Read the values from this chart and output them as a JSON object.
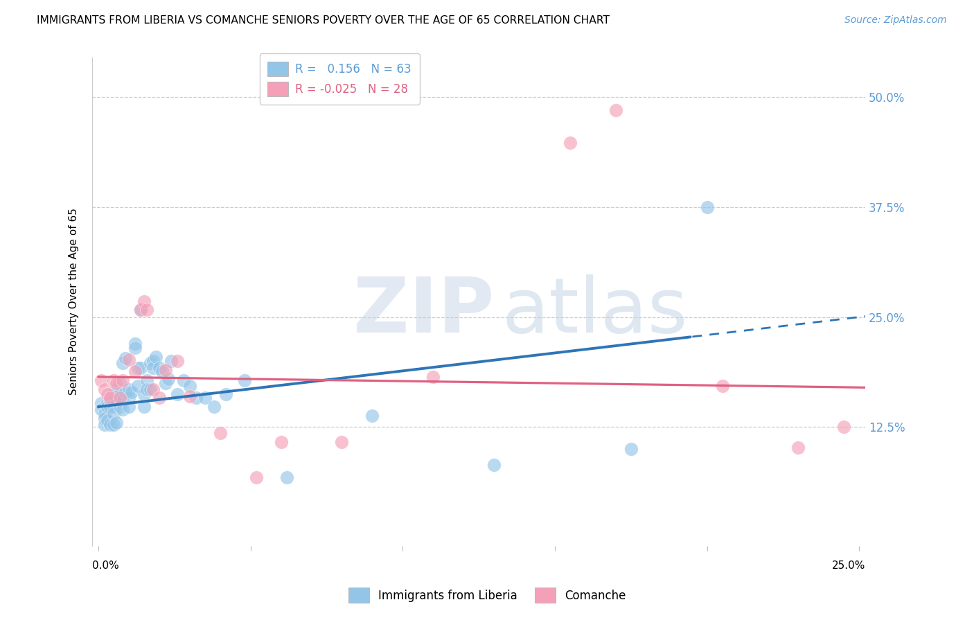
{
  "title": "IMMIGRANTS FROM LIBERIA VS COMANCHE SENIORS POVERTY OVER THE AGE OF 65 CORRELATION CHART",
  "source": "Source: ZipAtlas.com",
  "ylabel": "Seniors Poverty Over the Age of 65",
  "ytick_labels": [
    "12.5%",
    "25.0%",
    "37.5%",
    "50.0%"
  ],
  "ytick_values": [
    0.125,
    0.25,
    0.375,
    0.5
  ],
  "xlim": [
    -0.002,
    0.252
  ],
  "ylim": [
    -0.01,
    0.545
  ],
  "legend_label1": "Immigrants from Liberia",
  "legend_label2": "Comanche",
  "R1": "0.156",
  "N1": "63",
  "R2": "-0.025",
  "N2": "28",
  "blue_color": "#92C5E8",
  "pink_color": "#F4A0B8",
  "line_blue": "#2E75B6",
  "line_pink": "#E06080",
  "line_solid_end": 0.195,
  "blue_line_x0": 0.0,
  "blue_line_y0": 0.148,
  "blue_line_x1": 0.25,
  "blue_line_y1": 0.25,
  "pink_line_x0": 0.0,
  "pink_line_y0": 0.182,
  "pink_line_x1": 0.25,
  "pink_line_y1": 0.17,
  "blue_scatter_x": [
    0.001,
    0.001,
    0.002,
    0.002,
    0.002,
    0.003,
    0.003,
    0.003,
    0.004,
    0.004,
    0.004,
    0.005,
    0.005,
    0.005,
    0.005,
    0.006,
    0.006,
    0.006,
    0.007,
    0.007,
    0.007,
    0.008,
    0.008,
    0.008,
    0.009,
    0.009,
    0.01,
    0.01,
    0.01,
    0.011,
    0.012,
    0.012,
    0.013,
    0.013,
    0.014,
    0.014,
    0.015,
    0.015,
    0.016,
    0.016,
    0.017,
    0.017,
    0.018,
    0.018,
    0.019,
    0.02,
    0.021,
    0.022,
    0.023,
    0.024,
    0.026,
    0.028,
    0.03,
    0.032,
    0.035,
    0.038,
    0.042,
    0.048,
    0.062,
    0.09,
    0.13,
    0.175,
    0.2
  ],
  "blue_scatter_y": [
    0.152,
    0.145,
    0.14,
    0.135,
    0.128,
    0.153,
    0.148,
    0.132,
    0.155,
    0.148,
    0.128,
    0.162,
    0.148,
    0.14,
    0.128,
    0.168,
    0.155,
    0.13,
    0.175,
    0.162,
    0.148,
    0.198,
    0.155,
    0.145,
    0.203,
    0.165,
    0.168,
    0.158,
    0.148,
    0.165,
    0.22,
    0.215,
    0.192,
    0.172,
    0.258,
    0.192,
    0.162,
    0.148,
    0.178,
    0.168,
    0.198,
    0.168,
    0.2,
    0.192,
    0.205,
    0.192,
    0.188,
    0.175,
    0.18,
    0.2,
    0.162,
    0.178,
    0.172,
    0.158,
    0.158,
    0.148,
    0.162,
    0.178,
    0.068,
    0.138,
    0.082,
    0.1,
    0.375
  ],
  "pink_scatter_x": [
    0.001,
    0.002,
    0.003,
    0.004,
    0.005,
    0.006,
    0.007,
    0.008,
    0.01,
    0.012,
    0.014,
    0.015,
    0.016,
    0.018,
    0.02,
    0.022,
    0.026,
    0.03,
    0.04,
    0.052,
    0.06,
    0.08,
    0.11,
    0.155,
    0.17,
    0.205,
    0.23,
    0.245
  ],
  "pink_scatter_y": [
    0.178,
    0.168,
    0.162,
    0.158,
    0.178,
    0.175,
    0.158,
    0.178,
    0.202,
    0.188,
    0.258,
    0.268,
    0.258,
    0.168,
    0.158,
    0.19,
    0.2,
    0.16,
    0.118,
    0.068,
    0.108,
    0.108,
    0.182,
    0.448,
    0.485,
    0.172,
    0.102,
    0.125
  ]
}
